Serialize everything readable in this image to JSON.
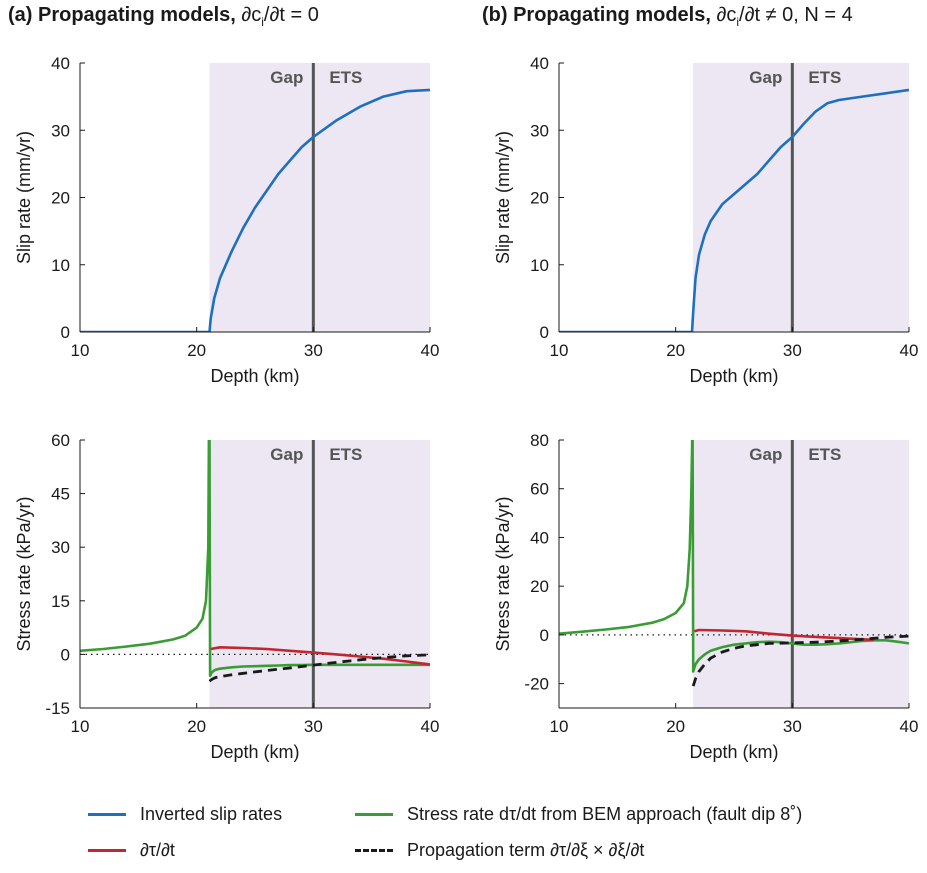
{
  "titles": {
    "a": {
      "prefix": "(a) Propagating models, ",
      "math_pre": "∂c",
      "math_sub": "i",
      "math_post": "/∂t = 0"
    },
    "b": {
      "prefix": "(b) Propagating models, ",
      "math_pre": "∂c",
      "math_sub": "i",
      "math_post": "/∂t ≠ 0, N = 4"
    }
  },
  "colors": {
    "slip": "#1f6fbf",
    "bem": "#3a9c35",
    "dtaudt": "#c1272d",
    "propagation": "#1a1a1a",
    "shade": "#ece7f3",
    "divider": "#555555"
  },
  "legend": {
    "slip": "Inverted slip rates",
    "bem": "Stress rate dτ/dt from BEM approach (fault dip 8˚)",
    "dtaudt": "∂τ/∂t",
    "propagation": "Propagation term ∂τ/∂ξ × ∂ξ/∂t"
  },
  "chart_data": [
    {
      "id": "a-top",
      "type": "line",
      "xlabel": "Depth (km)",
      "ylabel": "Slip rate (mm/yr)",
      "xlim": [
        10,
        40
      ],
      "ylim": [
        0,
        40
      ],
      "xticks": [
        10,
        20,
        30,
        40
      ],
      "yticks": [
        0,
        10,
        20,
        30,
        40
      ],
      "shaded_region": [
        21.1,
        40
      ],
      "divider_x": 30,
      "zone_labels": [
        "Gap",
        "ETS"
      ],
      "series": [
        {
          "key": "slip",
          "x": [
            10,
            21.1,
            21.2,
            21.5,
            22,
            23,
            24,
            25,
            26,
            27,
            28,
            29,
            30,
            32,
            34,
            36,
            38,
            40
          ],
          "y": [
            0,
            0,
            2,
            5,
            8,
            12,
            15.5,
            18.5,
            21,
            23.5,
            25.5,
            27.5,
            29,
            31.5,
            33.5,
            35,
            35.8,
            36
          ]
        }
      ]
    },
    {
      "id": "b-top",
      "type": "line",
      "xlabel": "Depth (km)",
      "ylabel": "Slip rate (mm/yr)",
      "xlim": [
        10,
        40
      ],
      "ylim": [
        0,
        40
      ],
      "xticks": [
        10,
        20,
        30,
        40
      ],
      "yticks": [
        0,
        10,
        20,
        30,
        40
      ],
      "shaded_region": [
        21.5,
        40
      ],
      "divider_x": 30,
      "zone_labels": [
        "Gap",
        "ETS"
      ],
      "series": [
        {
          "key": "slip",
          "x": [
            10,
            21.4,
            21.5,
            21.7,
            22,
            22.5,
            23,
            24,
            25,
            26,
            27,
            28,
            29,
            30,
            31,
            32,
            33,
            34,
            36,
            38,
            40
          ],
          "y": [
            0,
            0,
            3,
            8,
            11.5,
            14.5,
            16.5,
            19,
            20.5,
            22,
            23.5,
            25.5,
            27.5,
            29,
            31,
            32.8,
            34,
            34.5,
            35,
            35.5,
            36
          ]
        }
      ]
    },
    {
      "id": "a-bottom",
      "type": "line",
      "xlabel": "Depth (km)",
      "ylabel": "Stress rate (kPa/yr)",
      "xlim": [
        10,
        40
      ],
      "ylim": [
        -15,
        60
      ],
      "xticks": [
        10,
        20,
        30,
        40
      ],
      "yticks": [
        -15,
        0,
        15,
        30,
        45,
        60
      ],
      "shaded_region": [
        21.1,
        40
      ],
      "divider_x": 30,
      "zone_labels": [
        "Gap",
        "ETS"
      ],
      "zero_line": true,
      "series": [
        {
          "key": "bem",
          "x": [
            10,
            12,
            14,
            16,
            18,
            19,
            20,
            20.5,
            20.8,
            21.0,
            21.05,
            21.1,
            21.15,
            21.3,
            21.6,
            22,
            23,
            24,
            25,
            26,
            27,
            28,
            29,
            30,
            31,
            32,
            33,
            34,
            35,
            36,
            37,
            38,
            39,
            40
          ],
          "y": [
            1,
            1.5,
            2.2,
            3,
            4.2,
            5.2,
            7.5,
            10,
            15,
            30,
            60,
            60,
            -6,
            -5,
            -4.3,
            -4,
            -3.6,
            -3.4,
            -3.3,
            -3.2,
            -3.1,
            -3.0,
            -3.0,
            -2.9,
            -2.9,
            -2.9,
            -2.9,
            -2.9,
            -2.9,
            -2.9,
            -2.9,
            -2.9,
            -2.9,
            -2.9
          ]
        },
        {
          "key": "dtaudt",
          "x": [
            21.2,
            22,
            24,
            26,
            28,
            30,
            32,
            34,
            36,
            38,
            40
          ],
          "y": [
            1.5,
            2,
            1.8,
            1.5,
            1.0,
            0.5,
            0,
            -0.6,
            -1.2,
            -2,
            -2.8
          ]
        },
        {
          "key": "propagation",
          "x": [
            21.1,
            21.3,
            21.6,
            22,
            23,
            24,
            25,
            26,
            28,
            30,
            32,
            34,
            36,
            38,
            40
          ],
          "y": [
            -7.5,
            -7,
            -6.5,
            -6.2,
            -5.7,
            -5.3,
            -4.9,
            -4.5,
            -3.8,
            -3.0,
            -2.2,
            -1.5,
            -0.9,
            -0.4,
            -0.1
          ]
        }
      ]
    },
    {
      "id": "b-bottom",
      "type": "line",
      "xlabel": "Depth (km)",
      "ylabel": "Stress rate (kPa/yr)",
      "xlim": [
        10,
        40
      ],
      "ylim": [
        -30,
        80
      ],
      "xticks": [
        10,
        20,
        30,
        40
      ],
      "yticks": [
        -20,
        0,
        20,
        40,
        60,
        80
      ],
      "shaded_region": [
        21.5,
        40
      ],
      "divider_x": 30,
      "zone_labels": [
        "Gap",
        "ETS"
      ],
      "zero_line": true,
      "series": [
        {
          "key": "bem",
          "x": [
            10,
            12,
            14,
            16,
            18,
            19,
            20,
            20.7,
            21.0,
            21.2,
            21.35,
            21.42,
            21.45,
            21.5,
            21.7,
            22,
            22.5,
            23,
            24,
            25,
            26,
            27,
            28,
            29,
            30,
            31,
            32,
            33,
            34,
            35,
            36,
            37,
            38,
            39,
            40
          ],
          "y": [
            0.5,
            1.3,
            2.2,
            3.3,
            5,
            6.5,
            9,
            13,
            20,
            35,
            60,
            80,
            80,
            -15,
            -12,
            -10,
            -8,
            -6.5,
            -5,
            -4,
            -3.5,
            -3,
            -2.8,
            -3,
            -3.5,
            -4,
            -4,
            -3.8,
            -3.5,
            -3,
            -2.5,
            -2.2,
            -2.2,
            -2.8,
            -3.5
          ]
        },
        {
          "key": "dtaudt",
          "x": [
            21.6,
            22,
            24,
            26,
            28,
            30,
            32,
            34,
            36,
            37
          ],
          "y": [
            1.5,
            2,
            1.8,
            1.5,
            0.5,
            -0.3,
            -0.8,
            -1.3,
            -1.8,
            -2
          ]
        },
        {
          "key": "propagation",
          "x": [
            21.5,
            21.7,
            22,
            22.5,
            23,
            24,
            25,
            26,
            27,
            28,
            30,
            32,
            34,
            36,
            38,
            40
          ],
          "y": [
            -21,
            -18,
            -15,
            -12,
            -9.5,
            -7,
            -5.5,
            -4.5,
            -4,
            -3.5,
            -3.3,
            -3,
            -2.5,
            -1.8,
            -1,
            -0.5
          ]
        }
      ]
    }
  ]
}
